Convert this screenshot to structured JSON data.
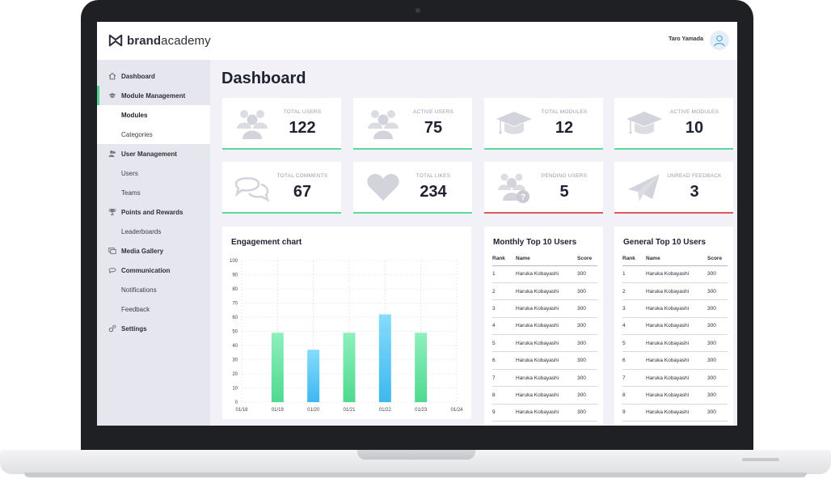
{
  "brand": {
    "name_bold": "brand",
    "name_light": "academy"
  },
  "header": {
    "user_name": "Taro Yamada"
  },
  "sidebar": {
    "items": [
      {
        "label": "Dashboard",
        "icon": "home-icon"
      },
      {
        "label": "Module Management",
        "icon": "graduation-cap-icon"
      },
      {
        "label": "Modules"
      },
      {
        "label": "Categories"
      },
      {
        "label": "User Management",
        "icon": "users-icon"
      },
      {
        "label": "Users"
      },
      {
        "label": "Teams"
      },
      {
        "label": "Points and Rewards",
        "icon": "trophy-icon"
      },
      {
        "label": "Leaderboards"
      },
      {
        "label": "Media Gallery",
        "icon": "images-icon"
      },
      {
        "label": "Communication",
        "icon": "chat-icon"
      },
      {
        "label": "Notifications"
      },
      {
        "label": "Feedback"
      },
      {
        "label": "Settings",
        "icon": "gear-icon"
      }
    ]
  },
  "main": {
    "title": "Dashboard"
  },
  "stats": [
    {
      "label": "TOTAL USERS",
      "value": "122",
      "icon": "users-icon",
      "status_color": "#5fd99a"
    },
    {
      "label": "ACTIVE USERS",
      "value": "75",
      "icon": "users-icon",
      "status_color": "#5fd99a"
    },
    {
      "label": "TOTAL MODULES",
      "value": "12",
      "icon": "graduation-cap-icon",
      "status_color": "#5fd99a"
    },
    {
      "label": "ACTIVE MODULES",
      "value": "10",
      "icon": "graduation-cap-icon",
      "status_color": "#5fd99a"
    },
    {
      "label": "TOTAL COMMENTS",
      "value": "67",
      "icon": "comments-icon",
      "status_color": "#5fd99a"
    },
    {
      "label": "TOTAL LIKES",
      "value": "234",
      "icon": "heart-icon",
      "status_color": "#5fd99a"
    },
    {
      "label": "PENDING USERS",
      "value": "5",
      "icon": "users-question-icon",
      "status_color": "#e05a5a"
    },
    {
      "label": "UNREAD FEEDBACK",
      "value": "3",
      "icon": "paper-plane-icon",
      "status_color": "#e05a5a"
    }
  ],
  "engagement": {
    "title": "Engagement chart",
    "chart_data": {
      "type": "bar",
      "categories": [
        "01/18",
        "01/19",
        "01/20",
        "01/21",
        "01/22",
        "01/23",
        "01/24"
      ],
      "values": [
        null,
        49,
        37,
        49,
        62,
        49,
        null
      ],
      "ylim": [
        0,
        100
      ],
      "yticks": [
        0,
        10,
        20,
        30,
        40,
        50,
        60,
        70,
        80,
        90,
        100
      ],
      "grid": true,
      "bar_colors": [
        "#66e0a0",
        "#66e0a0",
        "#4cc3f2",
        "#66e0a0",
        "#4cc3f2",
        "#66e0a0",
        "#66e0a0"
      ]
    }
  },
  "monthly": {
    "title": "Monthly Top 10 Users",
    "headers": [
      "Rank",
      "Name",
      "Score"
    ],
    "rows": [
      [
        "1",
        "Haruka Kobayashi",
        "300"
      ],
      [
        "2",
        "Haruka Kobayashi",
        "300"
      ],
      [
        "3",
        "Haruka Kobayashi",
        "300"
      ],
      [
        "4",
        "Haruka Kobayashi",
        "300"
      ],
      [
        "5",
        "Haruka Kobayashi",
        "300"
      ],
      [
        "6",
        "Haruka Kobayashi",
        "300"
      ],
      [
        "7",
        "Haruka Kobayashi",
        "300"
      ],
      [
        "8",
        "Haruka Kobayashi",
        "300"
      ],
      [
        "9",
        "Haruka Kobayashi",
        "300"
      ]
    ]
  },
  "general": {
    "title": "General Top 10 Users",
    "headers": [
      "Rank",
      "Name",
      "Score"
    ],
    "rows": [
      [
        "1",
        "Haruka Kobayashi",
        "300"
      ],
      [
        "2",
        "Haruka Kobayashi",
        "300"
      ],
      [
        "3",
        "Haruka Kobayashi",
        "300"
      ],
      [
        "4",
        "Haruka Kobayashi",
        "300"
      ],
      [
        "5",
        "Haruka Kobayashi",
        "300"
      ],
      [
        "6",
        "Haruka Kobayashi",
        "300"
      ],
      [
        "7",
        "Haruka Kobayashi",
        "300"
      ],
      [
        "8",
        "Haruka Kobayashi",
        "300"
      ],
      [
        "9",
        "Haruka Kobayashi",
        "300"
      ]
    ]
  }
}
